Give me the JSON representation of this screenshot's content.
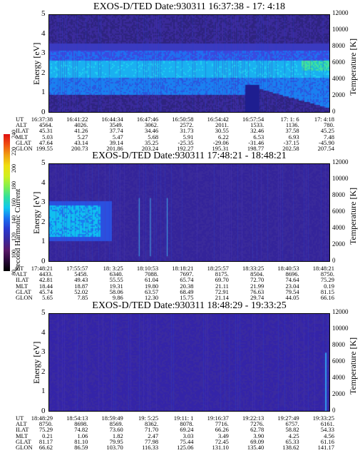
{
  "colorbar": {
    "label": "Second Harmonic Current",
    "ticks": [
      "240",
      "220",
      "200",
      "180",
      "160",
      "140",
      "120",
      "100",
      "80"
    ],
    "stops": [
      "#000000",
      "#2a0a3a",
      "#5a1a6a",
      "#3a2aa0",
      "#2a3ad0",
      "#1a70f0",
      "#10c8f0",
      "#30e0a0",
      "#80f050",
      "#d0f020",
      "#f0e010",
      "#f0a010",
      "#f05010",
      "#e01010"
    ]
  },
  "y_left_label": "Energy [eV]",
  "y_right_label": "Temperature [K]",
  "y_left_ticks": [
    "0",
    "1",
    "2",
    "3",
    "4",
    "5"
  ],
  "y_right_ticks": [
    "0",
    "2000",
    "4000",
    "6000",
    "8000",
    "10000",
    "12000"
  ],
  "row_labels": [
    "UT",
    "ALT",
    "ILAT",
    "MLT",
    "GLAT",
    "GLON"
  ],
  "chart_data": [
    {
      "type": "heatmap",
      "title": "EXOS-D/TED   Date:930311  16:37:38 - 17: 4:18",
      "ylabel": "Energy [eV]",
      "y2label": "Temperature [K]",
      "ylim": [
        0,
        5
      ],
      "y2lim": [
        0,
        12000
      ],
      "columns": [
        {
          "UT": "16:37:38",
          "ALT": "4564.",
          "ILAT": "45.31",
          "MLT": "5.03",
          "GLAT": "47.64",
          "GLON": "199.55"
        },
        {
          "UT": "16:41:22",
          "ALT": "4026.",
          "ILAT": "41.26",
          "MLT": "5.27",
          "GLAT": "43.14",
          "GLON": "200.73"
        },
        {
          "UT": "16:44:34",
          "ALT": "3549.",
          "ILAT": "37.74",
          "MLT": "5.47",
          "GLAT": "39.14",
          "GLON": "201.86"
        },
        {
          "UT": "16:47:46",
          "ALT": "3062.",
          "ILAT": "34.46",
          "MLT": "5.68",
          "GLAT": "35.25",
          "GLON": "203.24"
        },
        {
          "UT": "16:50:58",
          "ALT": "2572.",
          "ILAT": "31.73",
          "MLT": "5.91",
          "GLAT": "-25.35",
          "GLON": "192.27"
        },
        {
          "UT": "16:54:42",
          "ALT": "2011.",
          "ILAT": "30.55",
          "MLT": "6.22",
          "GLAT": "-29.06",
          "GLON": "195.31"
        },
        {
          "UT": "16:57:54",
          "ALT": "1533.",
          "ILAT": "32.46",
          "MLT": "6.53",
          "GLAT": "-31.46",
          "GLON": "198.77"
        },
        {
          "UT": "17: 1: 6",
          "ALT": "1136.",
          "ILAT": "37.58",
          "MLT": "6.93",
          "GLAT": "-37.15",
          "GLON": "202.58"
        },
        {
          "UT": "17: 4:18",
          "ALT": "780.",
          "ILAT": "45.25",
          "MLT": "7.48",
          "GLAT": "-45.90",
          "GLON": "207.54"
        }
      ]
    },
    {
      "type": "heatmap",
      "title": "EXOS-D/TED   Date:930311  17:48:21 - 18:48:21",
      "ylabel": "Energy [eV]",
      "y2label": "Temperature [K]",
      "ylim": [
        0,
        5
      ],
      "y2lim": [
        0,
        12000
      ],
      "columns": [
        {
          "UT": "17:48:21",
          "ALT": "4433.",
          "ILAT": "42.81",
          "MLT": "18.44",
          "GLAT": "45.74",
          "GLON": "5.65"
        },
        {
          "UT": "17:55:57",
          "ALT": "5458.",
          "ILAT": "49.43",
          "MLT": "18.87",
          "GLAT": "52.02",
          "GLON": "7.85"
        },
        {
          "UT": "18: 3:25",
          "ALT": "6340.",
          "ILAT": "55.55",
          "MLT": "19.31",
          "GLAT": "58.06",
          "GLON": "9.86"
        },
        {
          "UT": "18:10:53",
          "ALT": "7088.",
          "ILAT": "61.04",
          "MLT": "19.80",
          "GLAT": "63.57",
          "GLON": "12.30"
        },
        {
          "UT": "18:18:21",
          "ALT": "7697.",
          "ILAT": "65.74",
          "MLT": "20.38",
          "GLAT": "68.49",
          "GLON": "15.75"
        },
        {
          "UT": "18:25:57",
          "ALT": "8175.",
          "ILAT": "69.70",
          "MLT": "21.11",
          "GLAT": "72.91",
          "GLON": "21.14"
        },
        {
          "UT": "18:33:25",
          "ALT": "8504.",
          "ILAT": "72.70",
          "MLT": "21.99",
          "GLAT": "76.63",
          "GLON": "29.74"
        },
        {
          "UT": "18:40:53",
          "ALT": "8696.",
          "ILAT": "74.64",
          "MLT": "23.04",
          "GLAT": "79.54",
          "GLON": "44.05"
        },
        {
          "UT": "18:48:21",
          "ALT": "8750.",
          "ILAT": "75.29",
          "MLT": "0.19",
          "GLAT": "81.15",
          "GLON": "66.16"
        }
      ]
    },
    {
      "type": "heatmap",
      "title": "EXOS-D/TED   Date:930311  18:48:29 - 19:33:25",
      "ylabel": "Energy [eV]",
      "y2label": "Temperature [K]",
      "ylim": [
        0,
        5
      ],
      "y2lim": [
        0,
        12000
      ],
      "columns": [
        {
          "UT": "18:48:29",
          "ALT": "8750.",
          "ILAT": "75.29",
          "MLT": "0.21",
          "GLAT": "81.17",
          "GLON": "66.62"
        },
        {
          "UT": "18:54:13",
          "ALT": "8698.",
          "ILAT": "74.82",
          "MLT": "1.06",
          "GLAT": "81.10",
          "GLON": "86.59"
        },
        {
          "UT": "18:59:49",
          "ALT": "8569.",
          "ILAT": "73.60",
          "MLT": "1.82",
          "GLAT": "79.95",
          "GLON": "103.70"
        },
        {
          "UT": "19: 5:25",
          "ALT": "8362.",
          "ILAT": "71.70",
          "MLT": "2.47",
          "GLAT": "77.98",
          "GLON": "116.33"
        },
        {
          "UT": "19:11: 1",
          "ALT": "8078.",
          "ILAT": "69.24",
          "MLT": "3.03",
          "GLAT": "75.44",
          "GLON": "125.06"
        },
        {
          "UT": "19:16:37",
          "ALT": "7716.",
          "ILAT": "66.26",
          "MLT": "3.49",
          "GLAT": "72.45",
          "GLON": "131.10"
        },
        {
          "UT": "19:22:13",
          "ALT": "7276.",
          "ILAT": "62.78",
          "MLT": "3.90",
          "GLAT": "69.09",
          "GLON": "135.40"
        },
        {
          "UT": "19:27:49",
          "ALT": "6757.",
          "ILAT": "58.82",
          "MLT": "4.25",
          "GLAT": "65.33",
          "GLON": "138.62"
        },
        {
          "UT": "19:33:25",
          "ALT": "6161.",
          "ILAT": "54.33",
          "MLT": "4.56",
          "GLAT": "61.16",
          "GLON": "141.17"
        }
      ]
    }
  ]
}
